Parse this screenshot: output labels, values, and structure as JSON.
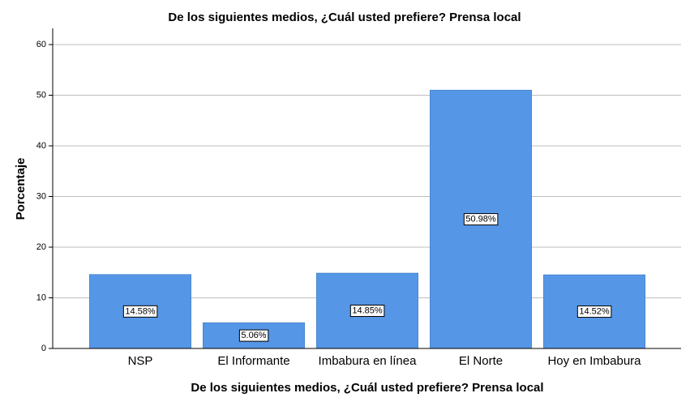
{
  "chart_data": {
    "type": "bar",
    "title": "De los siguientes medios, ¿Cuál usted prefiere? Prensa local",
    "x_label": "De los siguientes medios, ¿Cuál usted prefiere? Prensa local",
    "y_label": "Porcentaje",
    "categories": [
      "NSP",
      "El Informante",
      "Imbabura en línea",
      "El Norte",
      "Hoy en Imbabura"
    ],
    "values": [
      14.58,
      5.06,
      14.85,
      50.98,
      14.52
    ],
    "value_labels": [
      "14.58%",
      "5.06%",
      "14.85%",
      "50.98%",
      "14.52%"
    ],
    "color": "#5596e6",
    "ylim": [
      0,
      63.2
    ],
    "yticks": [
      0,
      10,
      20,
      30,
      40,
      50,
      60
    ],
    "grid": true
  }
}
